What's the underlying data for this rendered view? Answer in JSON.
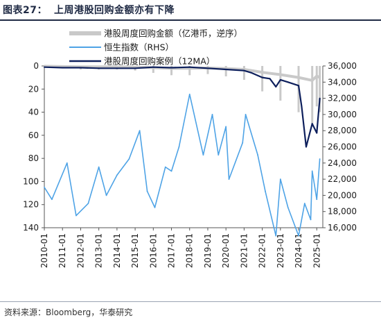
{
  "title": {
    "label": "图表27：",
    "text": "上周港股回购金额亦有下降"
  },
  "source": {
    "text": "资料来源：Bloomberg，华泰研究"
  },
  "colors": {
    "amount": "#c9c9c9",
    "hsi": "#4ea3e6",
    "ma": "#0d1f5c",
    "axis": "#555555"
  },
  "chart_data": {
    "type": "line",
    "series": [
      {
        "name": "港股周度回购金额（亿港币，逆序）",
        "axis": "left",
        "style": "bar-like spikes",
        "x": [
          "2010-01",
          "2011-01",
          "2012-01",
          "2013-01",
          "2014-01",
          "2015-01",
          "2016-01",
          "2017-01",
          "2018-01",
          "2019-01",
          "2020-01",
          "2021-01",
          "2022-01",
          "2023-01",
          "2024-01",
          "2024-10",
          "2025-01",
          "2025-03"
        ],
        "values": [
          1,
          2,
          3,
          3,
          3,
          4,
          6,
          8,
          8,
          7,
          9,
          12,
          22,
          30,
          40,
          50,
          35,
          40
        ]
      },
      {
        "name": "恒生指数（RHS）",
        "axis": "right",
        "x": [
          "2010-01",
          "2010-06",
          "2011-04",
          "2011-10",
          "2012-06",
          "2013-01",
          "2013-06",
          "2014-01",
          "2014-09",
          "2015-04",
          "2015-09",
          "2016-02",
          "2016-09",
          "2017-01",
          "2017-06",
          "2018-01",
          "2018-10",
          "2019-04",
          "2019-08",
          "2020-01",
          "2020-03",
          "2020-12",
          "2021-02",
          "2021-10",
          "2022-03",
          "2022-10",
          "2023-01",
          "2023-06",
          "2024-01",
          "2024-05",
          "2024-09",
          "2024-10",
          "2025-01",
          "2025-03"
        ],
        "values": [
          21000,
          19500,
          24000,
          17500,
          19000,
          23500,
          20000,
          22500,
          24500,
          28000,
          20500,
          18500,
          23500,
          23000,
          26000,
          32500,
          25000,
          30000,
          25000,
          28500,
          22000,
          26500,
          30000,
          25000,
          20500,
          15000,
          22000,
          18500,
          15000,
          19000,
          17000,
          23000,
          19500,
          24500
        ]
      },
      {
        "name": "港股周度回购案例（12MA）",
        "axis": "left",
        "x": [
          "2010-01",
          "2011-01",
          "2012-01",
          "2013-01",
          "2014-01",
          "2015-01",
          "2016-01",
          "2017-01",
          "2018-01",
          "2019-01",
          "2020-01",
          "2021-01",
          "2021-06",
          "2022-01",
          "2022-06",
          "2022-10",
          "2023-01",
          "2023-06",
          "2024-01",
          "2024-03",
          "2024-06",
          "2024-10",
          "2025-01",
          "2025-03"
        ],
        "values": [
          1,
          1.5,
          1.5,
          2,
          2,
          2,
          1,
          1.5,
          1,
          2,
          3,
          4,
          6,
          10,
          11,
          18,
          12,
          14,
          17,
          35,
          70,
          50,
          58,
          28
        ]
      }
    ],
    "xlabels": [
      "2010-01",
      "2011-01",
      "2012-01",
      "2013-01",
      "2014-01",
      "2015-01",
      "2016-01",
      "2017-01",
      "2018-01",
      "2019-01",
      "2020-01",
      "2021-01",
      "2022-01",
      "2023-01",
      "2024-01",
      "2025-01"
    ],
    "y_left": {
      "ticks": [
        0,
        20,
        40,
        60,
        80,
        100,
        120,
        140
      ],
      "ylim": [
        0,
        140
      ],
      "inverted": true
    },
    "y_right": {
      "ticks": [
        "16,000",
        "18,000",
        "20,000",
        "22,000",
        "24,000",
        "26,000",
        "28,000",
        "30,000",
        "32,000",
        "34,000",
        "36,000"
      ],
      "ylim": [
        16000,
        36000
      ]
    },
    "legend": {
      "position": "top-center"
    },
    "grid": false
  }
}
